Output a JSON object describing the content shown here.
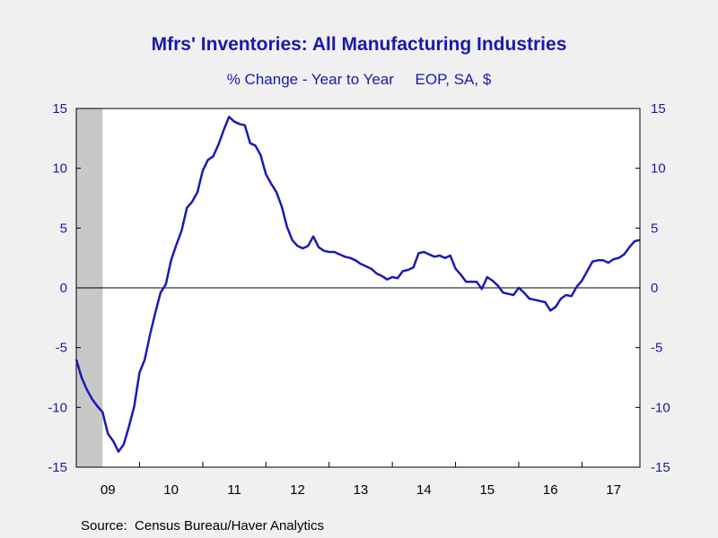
{
  "chart_data": {
    "type": "line",
    "title": "Mfrs' Inventories: All Manufacturing Industries",
    "subtitle": "% Change - Year to Year     EOP, SA, $",
    "source": "Source:  Census Bureau/Haver Analytics",
    "ylim": [
      -15,
      15
    ],
    "yticks": [
      15,
      10,
      5,
      0,
      -5,
      -10,
      -15
    ],
    "yticks_right": true,
    "xlim": [
      2009.0,
      2017.9167
    ],
    "xticks": [
      {
        "label": "09",
        "x": 2009.5
      },
      {
        "label": "10",
        "x": 2010.5
      },
      {
        "label": "11",
        "x": 2011.5
      },
      {
        "label": "12",
        "x": 2012.5
      },
      {
        "label": "13",
        "x": 2013.5
      },
      {
        "label": "14",
        "x": 2014.5
      },
      {
        "label": "15",
        "x": 2015.5
      },
      {
        "label": "16",
        "x": 2016.5
      },
      {
        "label": "17",
        "x": 2017.5
      }
    ],
    "recession_shading": {
      "start": 2009.0,
      "end": 2009.4167,
      "color": "#c8c8c8"
    },
    "zero_line": true,
    "grid": false,
    "line_color": "#1a1ab4",
    "series": [
      {
        "x": [
          2009.0,
          2009.0833,
          2009.1667,
          2009.25,
          2009.3333,
          2009.4167,
          2009.5,
          2009.5833,
          2009.6667,
          2009.75,
          2009.8333,
          2009.9167,
          2010.0,
          2010.0833,
          2010.1667,
          2010.25,
          2010.3333,
          2010.4167,
          2010.5,
          2010.5833,
          2010.6667,
          2010.75,
          2010.8333,
          2010.9167,
          2011.0,
          2011.0833,
          2011.1667,
          2011.25,
          2011.3333,
          2011.4167,
          2011.5,
          2011.5833,
          2011.6667,
          2011.75,
          2011.8333,
          2011.9167,
          2012.0,
          2012.0833,
          2012.1667,
          2012.25,
          2012.3333,
          2012.4167,
          2012.5,
          2012.5833,
          2012.6667,
          2012.75,
          2012.8333,
          2012.9167,
          2013.0,
          2013.0833,
          2013.1667,
          2013.25,
          2013.3333,
          2013.4167,
          2013.5,
          2013.5833,
          2013.6667,
          2013.75,
          2013.8333,
          2013.9167,
          2014.0,
          2014.0833,
          2014.1667,
          2014.25,
          2014.3333,
          2014.4167,
          2014.5,
          2014.5833,
          2014.6667,
          2014.75,
          2014.8333,
          2014.9167,
          2015.0,
          2015.0833,
          2015.1667,
          2015.25,
          2015.3333,
          2015.4167,
          2015.5,
          2015.5833,
          2015.6667,
          2015.75,
          2015.8333,
          2015.9167,
          2016.0,
          2016.0833,
          2016.1667,
          2016.25,
          2016.3333,
          2016.4167,
          2016.5,
          2016.5833,
          2016.6667,
          2016.75,
          2016.8333,
          2016.9167,
          2017.0,
          2017.0833,
          2017.1667,
          2017.25,
          2017.3333,
          2017.4167,
          2017.5,
          2017.5833,
          2017.6667,
          2017.75,
          2017.8333,
          2017.9167
        ],
        "values": [
          -6.0,
          -7.5,
          -8.5,
          -9.3,
          -9.9,
          -10.4,
          -12.2,
          -12.8,
          -13.7,
          -13.1,
          -11.6,
          -9.9,
          -7.1,
          -6.0,
          -3.9,
          -2.1,
          -0.4,
          0.3,
          2.3,
          3.6,
          4.8,
          6.7,
          7.2,
          8.0,
          9.8,
          10.7,
          11.0,
          12.0,
          13.2,
          14.3,
          13.9,
          13.7,
          13.6,
          12.1,
          11.9,
          11.1,
          9.5,
          8.7,
          8.0,
          6.8,
          5.1,
          4.0,
          3.5,
          3.3,
          3.5,
          4.3,
          3.4,
          3.1,
          3.0,
          3.0,
          2.8,
          2.6,
          2.5,
          2.3,
          2.0,
          1.8,
          1.6,
          1.2,
          1.0,
          0.7,
          0.9,
          0.8,
          1.4,
          1.5,
          1.7,
          2.9,
          3.0,
          2.8,
          2.6,
          2.7,
          2.5,
          2.7,
          1.6,
          1.1,
          0.5,
          0.5,
          0.5,
          -0.1,
          0.9,
          0.6,
          0.2,
          -0.4,
          -0.5,
          -0.6,
          0.0,
          -0.4,
          -0.9,
          -1.0,
          -1.1,
          -1.2,
          -1.9,
          -1.6,
          -0.9,
          -0.6,
          -0.7,
          0.1,
          0.6,
          1.4,
          2.2,
          2.3,
          2.3,
          2.1,
          2.4,
          2.5,
          2.8,
          3.4,
          3.9,
          4.0
        ]
      }
    ]
  }
}
